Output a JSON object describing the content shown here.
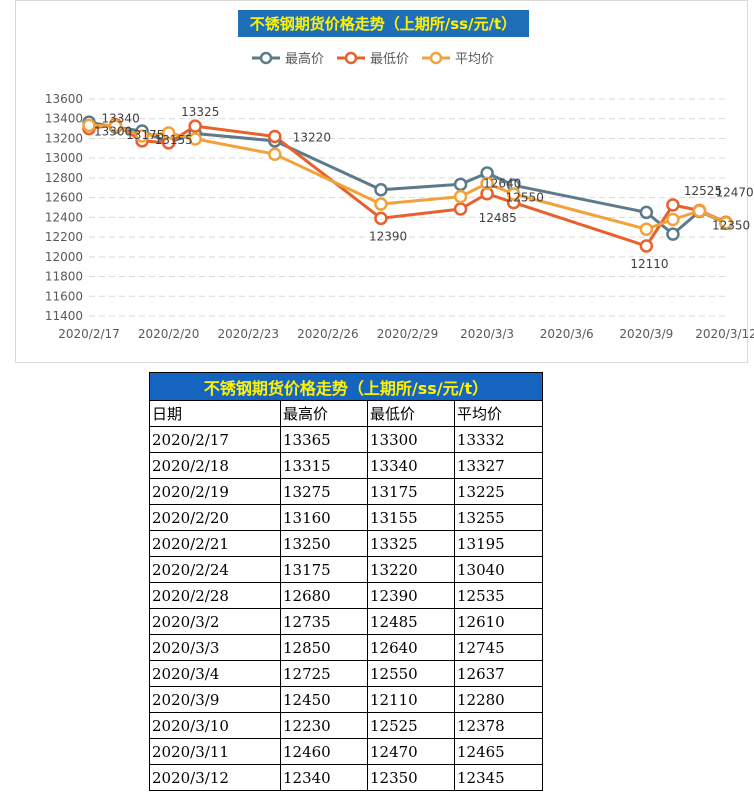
{
  "chart": {
    "title": "不锈钢期货价格走势（上期所/ss/元/t）",
    "legend": [
      "最高价",
      "最低价",
      "平均价"
    ]
  },
  "chart_data": {
    "type": "line",
    "title": "不锈钢期货价格走势（上期所/ss/元/t）",
    "x": [
      "2020/2/17",
      "2020/2/18",
      "2020/2/19",
      "2020/2/20",
      "2020/2/21",
      "2020/2/24",
      "2020/2/28",
      "2020/3/2",
      "2020/3/3",
      "2020/3/4",
      "2020/3/9",
      "2020/3/10",
      "2020/3/11",
      "2020/3/12"
    ],
    "x_ticks": [
      "2020/2/17",
      "2020/2/20",
      "2020/2/23",
      "2020/2/26",
      "2020/2/29",
      "2020/3/3",
      "2020/3/6",
      "2020/3/9",
      "2020/3/12"
    ],
    "ylim": [
      11400,
      13600
    ],
    "y_ticks": [
      11400,
      11600,
      11800,
      12000,
      12200,
      12400,
      12600,
      12800,
      13000,
      13200,
      13400,
      13600
    ],
    "grid": true,
    "legend_position": "top",
    "series": [
      {
        "name": "最高价",
        "color": "#5b7a8a",
        "values": [
          13365,
          13315,
          13275,
          13160,
          13250,
          13175,
          12680,
          12735,
          12850,
          12725,
          12450,
          12230,
          12460,
          12340
        ]
      },
      {
        "name": "最低价",
        "color": "#e8612c",
        "values": [
          13300,
          13340,
          13175,
          13155,
          13325,
          13220,
          12390,
          12485,
          12640,
          12550,
          12110,
          12525,
          12470,
          12350
        ]
      },
      {
        "name": "平均价",
        "color": "#f2a23a",
        "values": [
          13332,
          13327,
          13225,
          13255,
          13195,
          13040,
          12535,
          12610,
          12745,
          12637,
          12280,
          12378,
          12465,
          12345
        ]
      }
    ],
    "data_labels": [
      "13300",
      "13340",
      "13175",
      "13155",
      "13325",
      "13220",
      "12390",
      "12485",
      "12640",
      "12550",
      "12110",
      "12525",
      "12470",
      "12350"
    ]
  },
  "table": {
    "title": "不锈钢期货价格走势（上期所/ss/元/t）",
    "headers": [
      "日期",
      "最高价",
      "最低价",
      "平均价"
    ],
    "rows": [
      [
        "2020/2/17",
        "13365",
        "13300",
        "13332"
      ],
      [
        "2020/2/18",
        "13315",
        "13340",
        "13327"
      ],
      [
        "2020/2/19",
        "13275",
        "13175",
        "13225"
      ],
      [
        "2020/2/20",
        "13160",
        "13155",
        "13255"
      ],
      [
        "2020/2/21",
        "13250",
        "13325",
        "13195"
      ],
      [
        "2020/2/24",
        "13175",
        "13220",
        "13040"
      ],
      [
        "2020/2/28",
        "12680",
        "12390",
        "12535"
      ],
      [
        "2020/3/2",
        "12735",
        "12485",
        "12610"
      ],
      [
        "2020/3/3",
        "12850",
        "12640",
        "12745"
      ],
      [
        "2020/3/4",
        "12725",
        "12550",
        "12637"
      ],
      [
        "2020/3/9",
        "12450",
        "12110",
        "12280"
      ],
      [
        "2020/3/10",
        "12230",
        "12525",
        "12378"
      ],
      [
        "2020/3/11",
        "12460",
        "12470",
        "12465"
      ],
      [
        "2020/3/12",
        "12340",
        "12350",
        "12345"
      ]
    ]
  }
}
